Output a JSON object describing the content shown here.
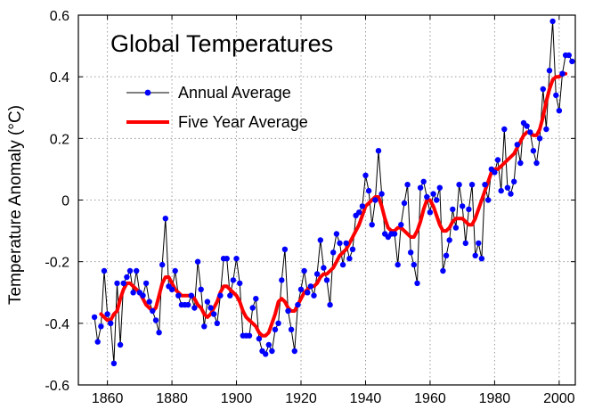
{
  "chart_data": {
    "type": "line",
    "title": "Global Temperatures",
    "xlabel": "",
    "ylabel": "Temperature Anomaly (°C)",
    "xlim": [
      1851,
      2005
    ],
    "ylim": [
      -0.6,
      0.6
    ],
    "xticks": [
      1860,
      1880,
      1900,
      1920,
      1940,
      1960,
      1980,
      2000
    ],
    "yticks": [
      -0.6,
      -0.4,
      -0.2,
      0,
      0.2,
      0.4,
      0.6
    ],
    "xtick_labels": [
      "1860",
      "1880",
      "1900",
      "1920",
      "1940",
      "1960",
      "1980",
      "2000"
    ],
    "ytick_labels": [
      "-0.6",
      "-0.4",
      "-0.2",
      "0",
      "0.2",
      "0.4",
      "0.6"
    ],
    "grid": true,
    "legend_position": "top-left",
    "series": [
      {
        "name": "Annual Average",
        "color": "#0000ff",
        "line_color": "#000000",
        "marker": "circle",
        "x": [
          1856,
          1857,
          1858,
          1859,
          1860,
          1861,
          1862,
          1863,
          1864,
          1865,
          1866,
          1867,
          1868,
          1869,
          1870,
          1871,
          1872,
          1873,
          1874,
          1875,
          1876,
          1877,
          1878,
          1879,
          1880,
          1881,
          1882,
          1883,
          1884,
          1885,
          1886,
          1887,
          1888,
          1889,
          1890,
          1891,
          1892,
          1893,
          1894,
          1895,
          1896,
          1897,
          1898,
          1899,
          1900,
          1901,
          1902,
          1903,
          1904,
          1905,
          1906,
          1907,
          1908,
          1909,
          1910,
          1911,
          1912,
          1913,
          1914,
          1915,
          1916,
          1917,
          1918,
          1919,
          1920,
          1921,
          1922,
          1923,
          1924,
          1925,
          1926,
          1927,
          1928,
          1929,
          1930,
          1931,
          1932,
          1933,
          1934,
          1935,
          1936,
          1937,
          1938,
          1939,
          1940,
          1941,
          1942,
          1943,
          1944,
          1945,
          1946,
          1947,
          1948,
          1949,
          1950,
          1951,
          1952,
          1953,
          1954,
          1955,
          1956,
          1957,
          1958,
          1959,
          1960,
          1961,
          1962,
          1963,
          1964,
          1965,
          1966,
          1967,
          1968,
          1969,
          1970,
          1971,
          1972,
          1973,
          1974,
          1975,
          1976,
          1977,
          1978,
          1979,
          1980,
          1981,
          1982,
          1983,
          1984,
          1985,
          1986,
          1987,
          1988,
          1989,
          1990,
          1991,
          1992,
          1993,
          1994,
          1995,
          1996,
          1997,
          1998,
          1999,
          2000,
          2001,
          2002,
          2003,
          2004
        ],
        "values": [
          -0.38,
          -0.46,
          -0.41,
          -0.23,
          -0.37,
          -0.4,
          -0.53,
          -0.27,
          -0.47,
          -0.27,
          -0.25,
          -0.23,
          -0.3,
          -0.23,
          -0.3,
          -0.31,
          -0.27,
          -0.33,
          -0.36,
          -0.39,
          -0.43,
          -0.21,
          -0.06,
          -0.28,
          -0.29,
          -0.23,
          -0.31,
          -0.34,
          -0.34,
          -0.34,
          -0.31,
          -0.35,
          -0.2,
          -0.29,
          -0.41,
          -0.33,
          -0.35,
          -0.37,
          -0.4,
          -0.31,
          -0.19,
          -0.19,
          -0.31,
          -0.26,
          -0.19,
          -0.27,
          -0.44,
          -0.44,
          -0.44,
          -0.35,
          -0.32,
          -0.45,
          -0.49,
          -0.5,
          -0.47,
          -0.49,
          -0.42,
          -0.4,
          -0.26,
          -0.16,
          -0.36,
          -0.42,
          -0.49,
          -0.34,
          -0.29,
          -0.23,
          -0.3,
          -0.28,
          -0.31,
          -0.24,
          -0.13,
          -0.22,
          -0.26,
          -0.34,
          -0.17,
          -0.11,
          -0.14,
          -0.21,
          -0.14,
          -0.19,
          -0.16,
          -0.05,
          -0.04,
          -0.02,
          0.08,
          0.03,
          -0.08,
          0.0,
          0.16,
          0.02,
          -0.11,
          -0.12,
          -0.11,
          -0.11,
          -0.21,
          -0.08,
          -0.01,
          0.05,
          -0.17,
          -0.21,
          -0.27,
          0.04,
          0.06,
          0.01,
          -0.04,
          0.02,
          0.0,
          0.04,
          -0.23,
          -0.18,
          -0.13,
          -0.03,
          -0.09,
          0.05,
          -0.02,
          -0.14,
          -0.03,
          0.05,
          -0.18,
          -0.14,
          -0.19,
          0.05,
          0.0,
          0.1,
          0.09,
          0.13,
          0.03,
          0.23,
          0.04,
          0.02,
          0.06,
          0.18,
          0.12,
          0.25,
          0.24,
          0.22,
          0.16,
          0.12,
          0.2,
          0.36,
          0.23,
          0.42,
          0.58,
          0.34,
          0.29,
          0.41,
          0.47,
          0.47,
          0.45
        ]
      },
      {
        "name": "Five Year Average",
        "color": "#ff0000",
        "x": [
          1858,
          1859,
          1860,
          1861,
          1862,
          1863,
          1864,
          1865,
          1866,
          1867,
          1868,
          1869,
          1870,
          1871,
          1872,
          1873,
          1874,
          1875,
          1876,
          1877,
          1878,
          1879,
          1880,
          1881,
          1882,
          1883,
          1884,
          1885,
          1886,
          1887,
          1888,
          1889,
          1890,
          1891,
          1892,
          1893,
          1894,
          1895,
          1896,
          1897,
          1898,
          1899,
          1900,
          1901,
          1902,
          1903,
          1904,
          1905,
          1906,
          1907,
          1908,
          1909,
          1910,
          1911,
          1912,
          1913,
          1914,
          1915,
          1916,
          1917,
          1918,
          1919,
          1920,
          1921,
          1922,
          1923,
          1924,
          1925,
          1926,
          1927,
          1928,
          1929,
          1930,
          1931,
          1932,
          1933,
          1934,
          1935,
          1936,
          1937,
          1938,
          1939,
          1940,
          1941,
          1942,
          1943,
          1944,
          1945,
          1946,
          1947,
          1948,
          1949,
          1950,
          1951,
          1952,
          1953,
          1954,
          1955,
          1956,
          1957,
          1958,
          1959,
          1960,
          1961,
          1962,
          1963,
          1964,
          1965,
          1966,
          1967,
          1968,
          1969,
          1970,
          1971,
          1972,
          1973,
          1974,
          1975,
          1976,
          1977,
          1978,
          1979,
          1980,
          1981,
          1982,
          1983,
          1984,
          1985,
          1986,
          1987,
          1988,
          1989,
          1990,
          1991,
          1992,
          1993,
          1994,
          1995,
          1996,
          1997,
          1998,
          1999,
          2000,
          2001,
          2002
        ],
        "values": [
          -0.37,
          -0.38,
          -0.39,
          -0.39,
          -0.37,
          -0.36,
          -0.32,
          -0.29,
          -0.27,
          -0.27,
          -0.28,
          -0.29,
          -0.3,
          -0.32,
          -0.34,
          -0.35,
          -0.36,
          -0.35,
          -0.31,
          -0.27,
          -0.25,
          -0.25,
          -0.27,
          -0.29,
          -0.3,
          -0.31,
          -0.31,
          -0.31,
          -0.31,
          -0.32,
          -0.34,
          -0.35,
          -0.37,
          -0.38,
          -0.37,
          -0.35,
          -0.33,
          -0.3,
          -0.28,
          -0.28,
          -0.29,
          -0.3,
          -0.31,
          -0.33,
          -0.36,
          -0.38,
          -0.39,
          -0.4,
          -0.41,
          -0.43,
          -0.44,
          -0.44,
          -0.43,
          -0.4,
          -0.37,
          -0.33,
          -0.32,
          -0.33,
          -0.35,
          -0.36,
          -0.36,
          -0.34,
          -0.32,
          -0.3,
          -0.29,
          -0.28,
          -0.28,
          -0.27,
          -0.25,
          -0.24,
          -0.24,
          -0.23,
          -0.22,
          -0.2,
          -0.18,
          -0.17,
          -0.16,
          -0.14,
          -0.12,
          -0.1,
          -0.08,
          -0.05,
          -0.02,
          -0.01,
          0.0,
          0.01,
          0.01,
          -0.02,
          -0.06,
          -0.09,
          -0.1,
          -0.1,
          -0.09,
          -0.09,
          -0.1,
          -0.11,
          -0.12,
          -0.12,
          -0.1,
          -0.07,
          -0.03,
          0.0,
          0.0,
          -0.02,
          -0.05,
          -0.08,
          -0.1,
          -0.1,
          -0.09,
          -0.07,
          -0.06,
          -0.06,
          -0.06,
          -0.07,
          -0.08,
          -0.08,
          -0.06,
          -0.03,
          0.0,
          0.03,
          0.06,
          0.09,
          0.1,
          0.1,
          0.11,
          0.12,
          0.13,
          0.14,
          0.15,
          0.17,
          0.19,
          0.21,
          0.22,
          0.22,
          0.21,
          0.21,
          0.23,
          0.27,
          0.32,
          0.36,
          0.39,
          0.4,
          0.4,
          0.41,
          0.41
        ]
      }
    ]
  }
}
